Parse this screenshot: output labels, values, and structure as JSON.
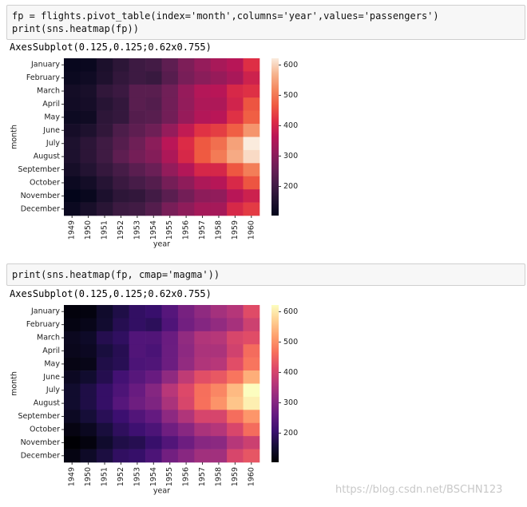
{
  "cells": [
    {
      "code": [
        "fp = flights.pivot_table(index='month',columns='year',values='passengers')",
        "print(sns.heatmap(fp))"
      ],
      "output": "AxesSubplot(0.125,0.125;0.62x0.755)"
    },
    {
      "code": [
        "print(sns.heatmap(fp, cmap='magma'))"
      ],
      "output": "AxesSubplot(0.125,0.125;0.62x0.755)"
    }
  ],
  "watermark": "https://blog.csdn.net/BSCHN123",
  "chart_data": [
    {
      "type": "heatmap",
      "xlabel": "year",
      "ylabel": "month",
      "x_categories": [
        "1949",
        "1950",
        "1951",
        "1952",
        "1953",
        "1954",
        "1955",
        "1956",
        "1957",
        "1958",
        "1959",
        "1960"
      ],
      "y_categories": [
        "January",
        "February",
        "March",
        "April",
        "May",
        "June",
        "July",
        "August",
        "September",
        "October",
        "November",
        "December"
      ],
      "values": [
        [
          112,
          115,
          145,
          171,
          196,
          204,
          242,
          284,
          315,
          340,
          360,
          417
        ],
        [
          118,
          126,
          150,
          180,
          196,
          188,
          233,
          277,
          301,
          318,
          342,
          391
        ],
        [
          132,
          141,
          178,
          193,
          236,
          235,
          267,
          317,
          356,
          362,
          406,
          419
        ],
        [
          129,
          135,
          163,
          181,
          235,
          227,
          269,
          313,
          348,
          348,
          396,
          461
        ],
        [
          121,
          125,
          172,
          183,
          229,
          234,
          270,
          318,
          355,
          363,
          420,
          472
        ],
        [
          135,
          149,
          178,
          218,
          243,
          264,
          315,
          374,
          422,
          435,
          472,
          535
        ],
        [
          148,
          170,
          199,
          230,
          264,
          302,
          364,
          413,
          465,
          491,
          548,
          622
        ],
        [
          148,
          170,
          199,
          242,
          272,
          293,
          347,
          405,
          467,
          505,
          559,
          606
        ],
        [
          136,
          158,
          184,
          209,
          237,
          259,
          312,
          355,
          404,
          404,
          463,
          508
        ],
        [
          119,
          133,
          162,
          191,
          211,
          229,
          274,
          306,
          347,
          359,
          407,
          461
        ],
        [
          104,
          114,
          146,
          172,
          180,
          203,
          237,
          271,
          305,
          310,
          362,
          390
        ],
        [
          118,
          140,
          166,
          194,
          201,
          229,
          278,
          306,
          336,
          337,
          405,
          432
        ]
      ],
      "clim": [
        104,
        622
      ],
      "cticks": [
        200,
        300,
        400,
        500,
        600
      ],
      "colormap": [
        "#03051a",
        "#221331",
        "#451c47",
        "#6a1f56",
        "#921c5b",
        "#b91657",
        "#dd2c45",
        "#ef5a41",
        "#f4875e",
        "#f6b48e",
        "#faebdd"
      ]
    },
    {
      "type": "heatmap",
      "xlabel": "year",
      "ylabel": "month",
      "x_categories": [
        "1949",
        "1950",
        "1951",
        "1952",
        "1953",
        "1954",
        "1955",
        "1956",
        "1957",
        "1958",
        "1959",
        "1960"
      ],
      "y_categories": [
        "January",
        "February",
        "March",
        "April",
        "May",
        "June",
        "July",
        "August",
        "September",
        "October",
        "November",
        "December"
      ],
      "values": [
        [
          112,
          115,
          145,
          171,
          196,
          204,
          242,
          284,
          315,
          340,
          360,
          417
        ],
        [
          118,
          126,
          150,
          180,
          196,
          188,
          233,
          277,
          301,
          318,
          342,
          391
        ],
        [
          132,
          141,
          178,
          193,
          236,
          235,
          267,
          317,
          356,
          362,
          406,
          419
        ],
        [
          129,
          135,
          163,
          181,
          235,
          227,
          269,
          313,
          348,
          348,
          396,
          461
        ],
        [
          121,
          125,
          172,
          183,
          229,
          234,
          270,
          318,
          355,
          363,
          420,
          472
        ],
        [
          135,
          149,
          178,
          218,
          243,
          264,
          315,
          374,
          422,
          435,
          472,
          535
        ],
        [
          148,
          170,
          199,
          230,
          264,
          302,
          364,
          413,
          465,
          491,
          548,
          622
        ],
        [
          148,
          170,
          199,
          242,
          272,
          293,
          347,
          405,
          467,
          505,
          559,
          606
        ],
        [
          136,
          158,
          184,
          209,
          237,
          259,
          312,
          355,
          404,
          404,
          463,
          508
        ],
        [
          119,
          133,
          162,
          191,
          211,
          229,
          274,
          306,
          347,
          359,
          407,
          461
        ],
        [
          104,
          114,
          146,
          172,
          180,
          203,
          237,
          271,
          305,
          310,
          362,
          390
        ],
        [
          118,
          140,
          166,
          194,
          201,
          229,
          278,
          306,
          336,
          337,
          405,
          432
        ]
      ],
      "clim": [
        104,
        622
      ],
      "cticks": [
        200,
        300,
        400,
        500,
        600
      ],
      "colormap": [
        "#000004",
        "#140e36",
        "#3b0f70",
        "#641a80",
        "#8c2981",
        "#b73779",
        "#de4968",
        "#f7705c",
        "#fe9f6d",
        "#fecf92",
        "#fcfdbf"
      ]
    }
  ]
}
